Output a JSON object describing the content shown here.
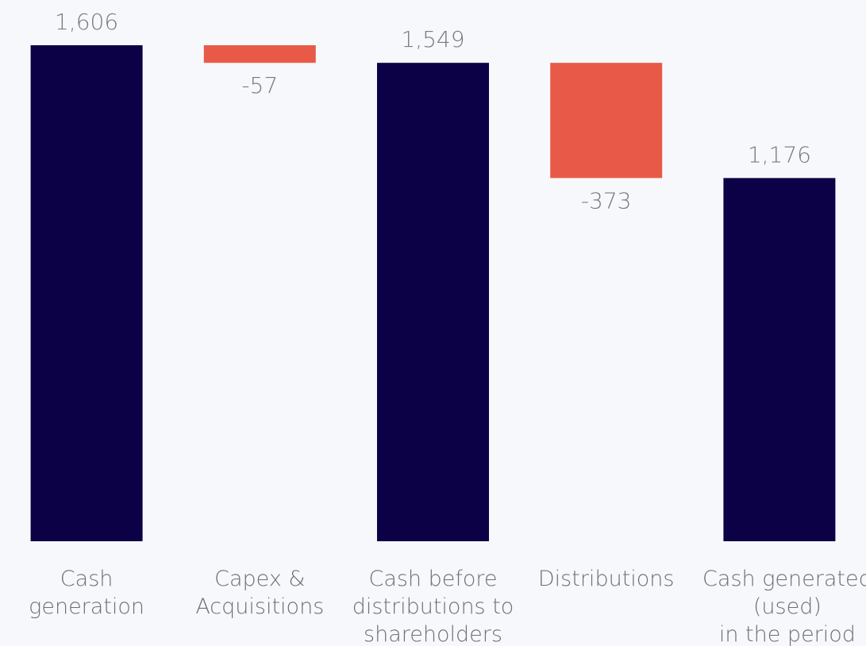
{
  "chart_data": {
    "type": "waterfall",
    "categories": [
      [
        "Cash",
        "generation"
      ],
      [
        "Capex &",
        "Acquisitions"
      ],
      [
        "Cash before",
        "distributions to",
        "shareholders"
      ],
      [
        "Distributions"
      ],
      [
        "Cash generated",
        "(used)",
        "in the period"
      ]
    ],
    "values": [
      1606,
      -57,
      1549,
      -373,
      1176
    ],
    "value_labels": [
      "1,606",
      "-57",
      "1,549",
      "-373",
      "1,176"
    ],
    "bar_kinds": [
      "total",
      "delta",
      "total",
      "delta",
      "total"
    ],
    "colors": {
      "total": "#0c0047",
      "delta": "#e85a47"
    },
    "title": "",
    "xlabel": "",
    "ylabel": "",
    "ylim": [
      0,
      1606
    ],
    "grid": false,
    "legend": "none"
  }
}
